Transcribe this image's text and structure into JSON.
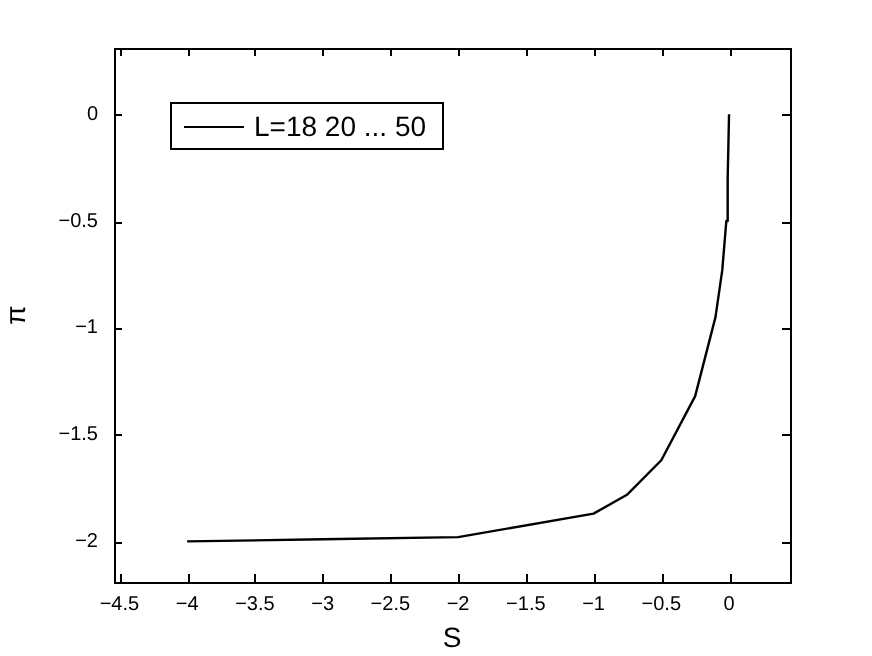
{
  "chart_data": {
    "type": "line",
    "xlabel": "S",
    "ylabel": "π",
    "legend": "top left",
    "xlim": [
      -4.54,
      0.45
    ],
    "xticks": [
      -4.5,
      -4,
      -3.5,
      -3,
      -2.5,
      -2,
      -1.5,
      -1,
      -0.5,
      0
    ],
    "ylim": [
      -2.19,
      0.31
    ],
    "yticks": [
      -2,
      -1.5,
      -1,
      -0.5,
      0
    ],
    "grid": false,
    "marker": "none",
    "line_style": "solid",
    "series": [
      {
        "name": "L=18 20 ... 50",
        "color": "#000000",
        "x": [
          -4,
          -3,
          -2,
          -1,
          -0.75,
          -0.5,
          -0.25,
          -0.1,
          -0.05,
          -0.02,
          -0.01,
          0
        ],
        "values": [
          -2,
          -1.99,
          -1.98,
          -1.87,
          -1.78,
          -1.62,
          -1.32,
          -0.95,
          -0.73,
          -0.5,
          -0.3,
          0
        ]
      }
    ]
  }
}
